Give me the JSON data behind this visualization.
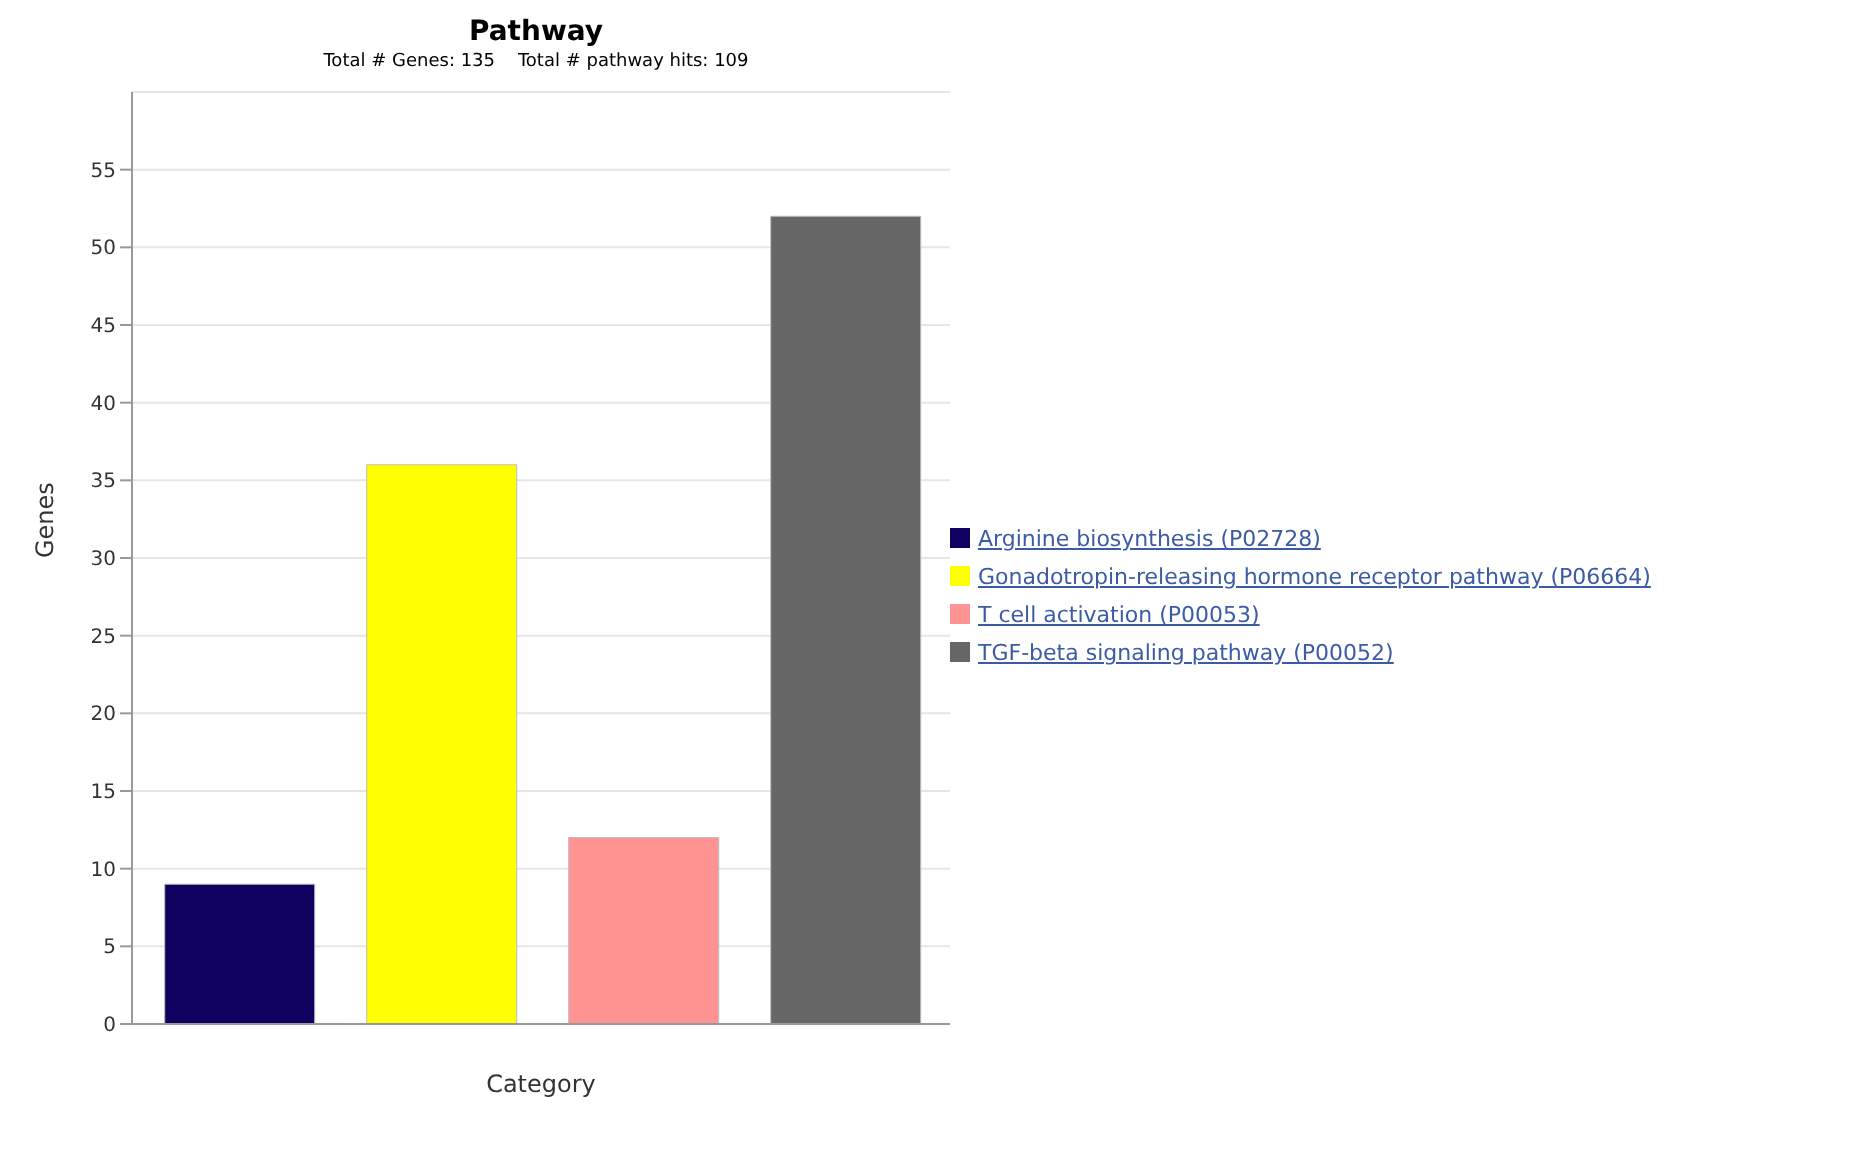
{
  "chart_data": {
    "type": "bar",
    "title": "Pathway",
    "subtitle": "Total # Genes: 135    Total # pathway hits: 109",
    "xlabel": "Category",
    "ylabel": "Genes",
    "categories": [
      null
    ],
    "series": [
      {
        "name": "Arginine biosynthesis (P02728)",
        "color": "#10005f",
        "values": [
          9
        ]
      },
      {
        "name": "Gonadotropin-releasing hormone receptor pathway (P06664)",
        "color": "#ffff00",
        "values": [
          36
        ]
      },
      {
        "name": "T cell activation (P00053)",
        "color": "#ff9391",
        "values": [
          12
        ]
      },
      {
        "name": "TGF-beta signaling pathway (P00052)",
        "color": "#666666",
        "values": [
          52
        ]
      }
    ],
    "ylim": [
      0,
      60
    ],
    "yticks": [
      0,
      5,
      10,
      15,
      20,
      25,
      30,
      35,
      40,
      45,
      50,
      55
    ],
    "grid": "y",
    "legend": "right"
  }
}
